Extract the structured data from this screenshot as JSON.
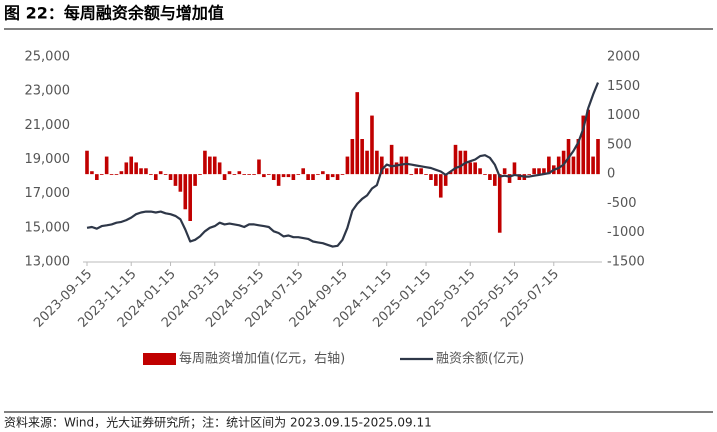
{
  "chart_data": {
    "type": "combo",
    "title": "图 22：每周融资余额与增加值",
    "source": "资料来源：Wind，光大证券研究所；注：统计区间为 2023.09.15-2025.09.11",
    "categories": [
      "2023-09-15",
      null,
      null,
      null,
      null,
      null,
      null,
      null,
      null,
      "2023-11-15",
      null,
      null,
      null,
      null,
      null,
      null,
      null,
      "2024-01-15",
      null,
      null,
      null,
      null,
      null,
      null,
      null,
      null,
      "2024-03-15",
      null,
      null,
      null,
      null,
      null,
      null,
      null,
      null,
      "2024-05-15",
      null,
      null,
      null,
      null,
      null,
      null,
      null,
      "2024-07-15",
      null,
      null,
      null,
      null,
      null,
      null,
      null,
      null,
      "2024-09-15",
      null,
      null,
      null,
      null,
      null,
      null,
      null,
      null,
      "2024-11-15",
      null,
      null,
      null,
      null,
      null,
      null,
      null,
      "2025-01-15",
      null,
      null,
      null,
      null,
      null,
      null,
      null,
      null,
      "2025-03-15",
      null,
      null,
      null,
      null,
      null,
      null,
      null,
      null,
      "2025-05-15",
      null,
      null,
      null,
      null,
      null,
      null,
      null,
      "2025-07-15",
      null,
      null,
      null,
      null,
      null,
      null,
      null,
      null,
      null
    ],
    "series": [
      {
        "name": "每周融资增加值(亿元，右轴)",
        "type": "bar",
        "axis": "y2",
        "color": "#c00000",
        "values": [
          400,
          50,
          -100,
          0,
          300,
          0,
          0,
          50,
          200,
          300,
          200,
          100,
          100,
          0,
          -100,
          50,
          0,
          -100,
          -200,
          -300,
          -600,
          -800,
          -200,
          0,
          400,
          300,
          300,
          200,
          -100,
          50,
          0,
          50,
          0,
          0,
          0,
          250,
          -50,
          0,
          -100,
          -200,
          -50,
          -50,
          -100,
          0,
          100,
          -100,
          -100,
          0,
          50,
          -100,
          -50,
          -100,
          0,
          300,
          600,
          1400,
          600,
          400,
          1000,
          400,
          300,
          100,
          500,
          200,
          300,
          300,
          0,
          100,
          100,
          0,
          -100,
          -200,
          -400,
          -200,
          50,
          500,
          400,
          400,
          200,
          200,
          100,
          0,
          -100,
          -200,
          -1000,
          100,
          -150,
          200,
          -100,
          -100,
          0,
          100,
          100,
          100,
          300,
          150,
          300,
          400,
          600,
          300,
          600,
          1000,
          1100,
          300,
          600
        ]
      },
      {
        "name": "融资余额(亿元)",
        "type": "line",
        "color": "#2e3748",
        "values": [
          15000,
          15050,
          14950,
          15100,
          15150,
          15200,
          15300,
          15350,
          15450,
          15600,
          15800,
          15900,
          15950,
          15950,
          15900,
          15950,
          15850,
          15800,
          15700,
          15500,
          14900,
          14200,
          14300,
          14500,
          14800,
          15000,
          15100,
          15300,
          15200,
          15250,
          15200,
          15150,
          15050,
          15200,
          15200,
          15150,
          15100,
          15050,
          14800,
          14700,
          14500,
          14550,
          14450,
          14450,
          14400,
          14350,
          14200,
          14150,
          14100,
          14000,
          13900,
          13950,
          14300,
          15000,
          16000,
          16400,
          16700,
          16900,
          17300,
          17500,
          18400,
          18700,
          18600,
          18650,
          18700,
          18750,
          18700,
          18650,
          18600,
          18550,
          18500,
          18400,
          18300,
          18100,
          18300,
          18500,
          18600,
          18800,
          18900,
          19000,
          19200,
          19250,
          19100,
          18700,
          18000,
          18050,
          18000,
          18100,
          18050,
          18000,
          18000,
          18050,
          18100,
          18150,
          18200,
          18400,
          18500,
          18700,
          19100,
          19500,
          20000,
          20800,
          22000,
          22800,
          23500
        ]
      }
    ],
    "ylim": [
      13000,
      25000
    ],
    "yticks": [
      {
        "value": 13000,
        "label": "13,000"
      },
      {
        "value": 15000,
        "label": "15,000"
      },
      {
        "value": 17000,
        "label": "17,000"
      },
      {
        "value": 19000,
        "label": "19,000"
      },
      {
        "value": 21000,
        "label": "21,000"
      },
      {
        "value": 23000,
        "label": "23,000"
      },
      {
        "value": 25000,
        "label": "25,000"
      }
    ],
    "y2lim": [
      -1500,
      2000
    ],
    "y2ticks": [
      -1500,
      -1000,
      -500,
      0,
      500,
      1000,
      1500,
      2000
    ],
    "legend": "bottom"
  }
}
